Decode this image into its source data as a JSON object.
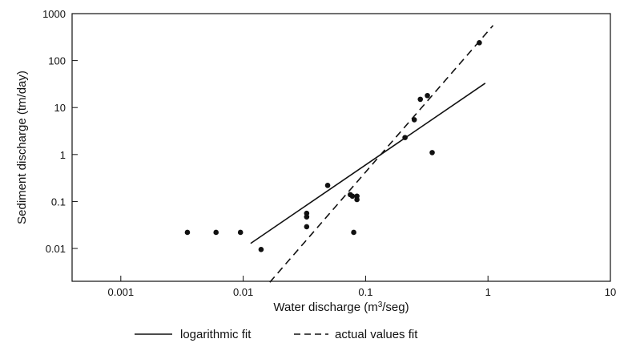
{
  "chart_data": {
    "type": "scatter",
    "title": "",
    "xlabel": "Water discharge (m³/seg)",
    "ylabel": "Sediment discharge (tm/day)",
    "xscale": "log",
    "yscale": "log",
    "xlim": [
      0.0004,
      10
    ],
    "ylim": [
      0.002,
      1000
    ],
    "x_ticks": [
      {
        "value": 0.001,
        "label": "0.001"
      },
      {
        "value": 0.01,
        "label": "0.01"
      },
      {
        "value": 0.1,
        "label": "0.1"
      },
      {
        "value": 1,
        "label": "1"
      },
      {
        "value": 10,
        "label": "10"
      }
    ],
    "y_ticks": [
      {
        "value": 0.01,
        "label": "0.01"
      },
      {
        "value": 0.1,
        "label": "0.1"
      },
      {
        "value": 1,
        "label": "1"
      },
      {
        "value": 10,
        "label": "10"
      },
      {
        "value": 100,
        "label": "100"
      },
      {
        "value": 1000,
        "label": "1000"
      }
    ],
    "points": [
      {
        "x": 0.0035,
        "y": 0.022
      },
      {
        "x": 0.006,
        "y": 0.022
      },
      {
        "x": 0.0095,
        "y": 0.022
      },
      {
        "x": 0.014,
        "y": 0.0095
      },
      {
        "x": 0.033,
        "y": 0.056
      },
      {
        "x": 0.033,
        "y": 0.047
      },
      {
        "x": 0.033,
        "y": 0.029
      },
      {
        "x": 0.049,
        "y": 0.22
      },
      {
        "x": 0.075,
        "y": 0.14
      },
      {
        "x": 0.078,
        "y": 0.13
      },
      {
        "x": 0.085,
        "y": 0.13
      },
      {
        "x": 0.085,
        "y": 0.11
      },
      {
        "x": 0.08,
        "y": 0.022
      },
      {
        "x": 0.21,
        "y": 2.3
      },
      {
        "x": 0.25,
        "y": 5.5
      },
      {
        "x": 0.28,
        "y": 15
      },
      {
        "x": 0.32,
        "y": 18
      },
      {
        "x": 0.35,
        "y": 1.1
      },
      {
        "x": 0.85,
        "y": 240
      }
    ],
    "fits": [
      {
        "name": "logarithmic fit",
        "style": "solid",
        "x": [
          0.0115,
          0.95
        ],
        "y": [
          0.0128,
          33
        ]
      },
      {
        "name": "actual values fit",
        "style": "dashed",
        "x": [
          0.0165,
          1.1
        ],
        "y": [
          0.00191,
          560
        ]
      }
    ],
    "legend": {
      "position": "bottom",
      "entries": [
        {
          "label": "logarithmic fit",
          "style": "solid"
        },
        {
          "label": "actual values fit",
          "style": "dashed"
        }
      ]
    },
    "grid": false
  }
}
